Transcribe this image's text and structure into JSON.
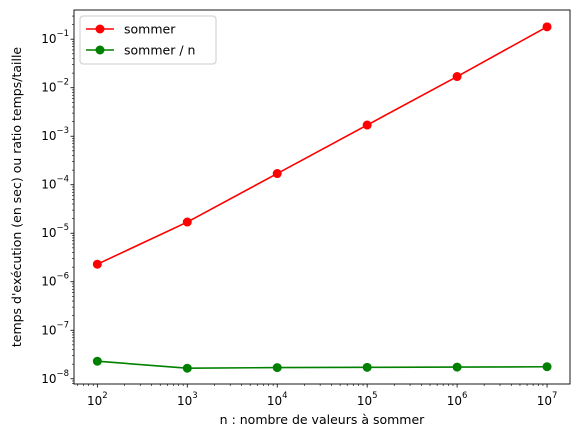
{
  "chart_data": {
    "type": "line",
    "x_scale": "log",
    "y_scale": "log",
    "xlabel": "n : nombre de valeurs à sommer",
    "ylabel": "temps d'exécution (en sec) ou ratio temps/taille",
    "x": [
      100,
      1000,
      10000,
      100000,
      1000000,
      10000000
    ],
    "series": [
      {
        "name": "sommer",
        "color": "#ff0000",
        "marker": "circle",
        "values": [
          2.3e-06,
          1.7e-05,
          0.00017,
          0.0017,
          0.017,
          0.18
        ]
      },
      {
        "name": "sommer / n",
        "color": "#008000",
        "marker": "circle",
        "values": [
          2.3e-08,
          1.65e-08,
          1.7e-08,
          1.72e-08,
          1.74e-08,
          1.77e-08
        ]
      }
    ],
    "x_ticks": [
      {
        "base": "10",
        "exp": "2"
      },
      {
        "base": "10",
        "exp": "3"
      },
      {
        "base": "10",
        "exp": "4"
      },
      {
        "base": "10",
        "exp": "5"
      },
      {
        "base": "10",
        "exp": "6"
      },
      {
        "base": "10",
        "exp": "7"
      }
    ],
    "y_ticks": [
      {
        "base": "10",
        "exp": "−8"
      },
      {
        "base": "10",
        "exp": "−7"
      },
      {
        "base": "10",
        "exp": "−6"
      },
      {
        "base": "10",
        "exp": "−5"
      },
      {
        "base": "10",
        "exp": "−4"
      },
      {
        "base": "10",
        "exp": "−3"
      },
      {
        "base": "10",
        "exp": "−2"
      },
      {
        "base": "10",
        "exp": "−1"
      }
    ],
    "xlim": [
      55,
      18000000
    ],
    "ylim": [
      7.8e-09,
      0.4
    ],
    "grid": false,
    "legend_position": "top-left"
  }
}
